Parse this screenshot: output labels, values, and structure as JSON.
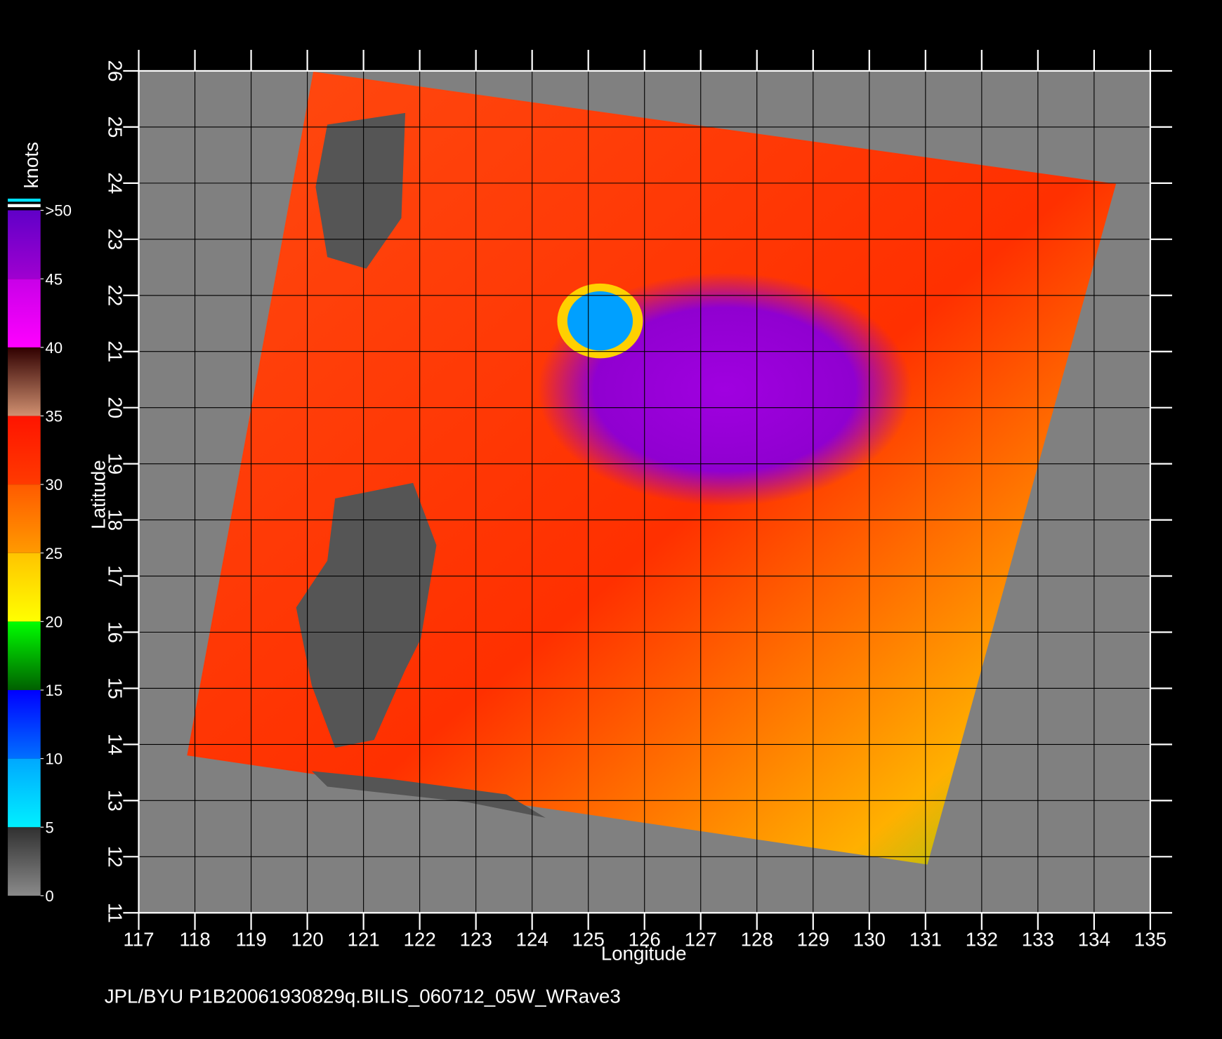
{
  "chart_data": {
    "type": "map",
    "xlabel": "Longitude",
    "ylabel": "Latitude",
    "xlim": [
      117,
      135
    ],
    "ylim": [
      11,
      26
    ],
    "xticks": [
      117,
      118,
      119,
      120,
      121,
      122,
      123,
      124,
      125,
      126,
      127,
      128,
      129,
      130,
      131,
      132,
      133,
      134,
      135
    ],
    "yticks": [
      11,
      12,
      13,
      14,
      15,
      16,
      17,
      18,
      19,
      20,
      21,
      22,
      23,
      24,
      25,
      26
    ],
    "grid": true,
    "colorbar": {
      "label": "knots",
      "lim": [
        0,
        50
      ],
      "ticks": [
        0,
        5,
        10,
        15,
        20,
        25,
        30,
        35,
        40,
        45,
        {
          "value": 50,
          "label": ">50"
        }
      ],
      "colors": [
        [
          "#8a8a8a",
          "#303030"
        ],
        [
          "#00f0ff",
          "#00a8ff"
        ],
        [
          "#0070ff",
          "#0000ff"
        ],
        [
          "#006000",
          "#00ff00"
        ],
        [
          "#ffff00",
          "#ffc400"
        ],
        [
          "#ff9a00",
          "#ff5a00"
        ],
        [
          "#ff3a00",
          "#ff1400"
        ],
        [
          "#d09070",
          "#300000"
        ],
        [
          "#ff00ff",
          "#c800e8"
        ],
        [
          "#a000d0",
          "#6000c8"
        ]
      ]
    },
    "footer": "JPL/BYU  P1B20061930829q.BILIS_060712_05W_WRave3"
  }
}
